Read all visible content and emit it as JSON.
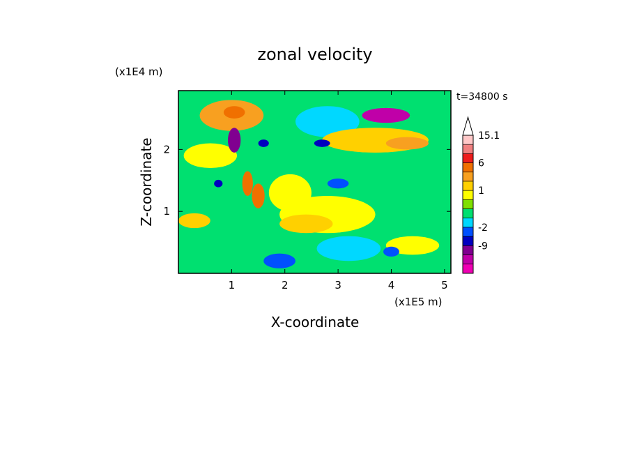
{
  "chart_data": {
    "type": "heatmap",
    "title": "zonal velocity",
    "xlabel": "X-coordinate",
    "ylabel": "Z-coordinate",
    "x_unit": "(x1E5 m)",
    "y_unit": "(x1E4 m)",
    "time_label": "t=34800 s",
    "xlim": [
      0,
      5.12
    ],
    "ylim": [
      0,
      2.95
    ],
    "x_ticks": [
      {
        "value": 1,
        "label": "1"
      },
      {
        "value": 2,
        "label": "2"
      },
      {
        "value": 3,
        "label": "3"
      },
      {
        "value": 4,
        "label": "4"
      },
      {
        "value": 5,
        "label": "5"
      }
    ],
    "y_ticks": [
      {
        "value": 1,
        "label": "1"
      },
      {
        "value": 2,
        "label": "2"
      }
    ],
    "colorbar": {
      "levels": [
        15.1,
        12,
        9,
        6,
        4,
        2,
        1,
        0.5,
        -0.5,
        -1,
        -2,
        -4,
        -9,
        -12,
        -15
      ],
      "labels": [
        {
          "value": 15.1,
          "label": "15.1"
        },
        {
          "value": 6,
          "label": "6"
        },
        {
          "value": 1,
          "label": "1"
        },
        {
          "value": -2,
          "label": "-2"
        },
        {
          "value": -9,
          "label": "-9"
        }
      ],
      "colors": [
        "#ffc8c8",
        "#f08080",
        "#ee1c1c",
        "#f07000",
        "#f8a020",
        "#ffd000",
        "#ffff00",
        "#80e000",
        "#00e070",
        "#00d8ff",
        "#0050ff",
        "#0000c0",
        "#800090",
        "#c000a8",
        "#f000b4"
      ],
      "top_arrow_color": "#ffffff"
    },
    "features": [
      {
        "x": 3.9,
        "z": 2.55,
        "value": -12,
        "extent_x": 0.45,
        "extent_z": 0.12
      },
      {
        "x": 1.05,
        "z": 2.15,
        "value": -9,
        "extent_x": 0.12,
        "extent_z": 0.2
      },
      {
        "x": 1.5,
        "z": 1.25,
        "value": 6,
        "extent_x": 0.12,
        "extent_z": 0.2
      },
      {
        "x": 1.3,
        "z": 1.45,
        "value": 6,
        "extent_x": 0.1,
        "extent_z": 0.2
      },
      {
        "x": 1.05,
        "z": 2.6,
        "value": 6,
        "extent_x": 0.2,
        "extent_z": 0.1
      },
      {
        "x": 0.7,
        "z": 2.5,
        "value": 4,
        "extent_x": 0.2,
        "extent_z": 0.1
      },
      {
        "x": 4.3,
        "z": 2.1,
        "value": 4,
        "extent_x": 0.4,
        "extent_z": 0.1
      },
      {
        "x": 1.0,
        "z": 2.55,
        "value": 4,
        "extent_x": 0.6,
        "extent_z": 0.25
      },
      {
        "x": 3.7,
        "z": 2.15,
        "value": 2,
        "extent_x": 1.0,
        "extent_z": 0.2
      },
      {
        "x": 2.4,
        "z": 0.8,
        "value": 2,
        "extent_x": 0.5,
        "extent_z": 0.15
      },
      {
        "x": 0.3,
        "z": 0.85,
        "value": 2,
        "extent_x": 0.3,
        "extent_z": 0.12
      },
      {
        "x": 2.8,
        "z": 0.95,
        "value": 1,
        "extent_x": 0.9,
        "extent_z": 0.3
      },
      {
        "x": 4.4,
        "z": 0.45,
        "value": 1,
        "extent_x": 0.5,
        "extent_z": 0.15
      },
      {
        "x": 0.6,
        "z": 1.9,
        "value": 1,
        "extent_x": 0.5,
        "extent_z": 0.2
      },
      {
        "x": 2.1,
        "z": 1.3,
        "value": 1,
        "extent_x": 0.4,
        "extent_z": 0.3
      },
      {
        "x": 2.8,
        "z": 2.45,
        "value": -1,
        "extent_x": 0.6,
        "extent_z": 0.25
      },
      {
        "x": 4.8,
        "z": 1.6,
        "value": -0.5,
        "extent_x": 0.35,
        "extent_z": 0.3
      },
      {
        "x": 3.2,
        "z": 0.4,
        "value": -1,
        "extent_x": 0.6,
        "extent_z": 0.2
      },
      {
        "x": 1.9,
        "z": 0.2,
        "value": -2,
        "extent_x": 0.3,
        "extent_z": 0.12
      },
      {
        "x": 3.0,
        "z": 1.45,
        "value": -2,
        "extent_x": 0.2,
        "extent_z": 0.08
      },
      {
        "x": 4.0,
        "z": 0.35,
        "value": -2,
        "extent_x": 0.15,
        "extent_z": 0.08
      },
      {
        "x": 2.7,
        "z": 2.1,
        "value": -4,
        "extent_x": 0.15,
        "extent_z": 0.06
      },
      {
        "x": 1.6,
        "z": 2.1,
        "value": -4,
        "extent_x": 0.1,
        "extent_z": 0.06
      },
      {
        "x": 0.75,
        "z": 1.45,
        "value": -4,
        "extent_x": 0.08,
        "extent_z": 0.06
      }
    ]
  }
}
